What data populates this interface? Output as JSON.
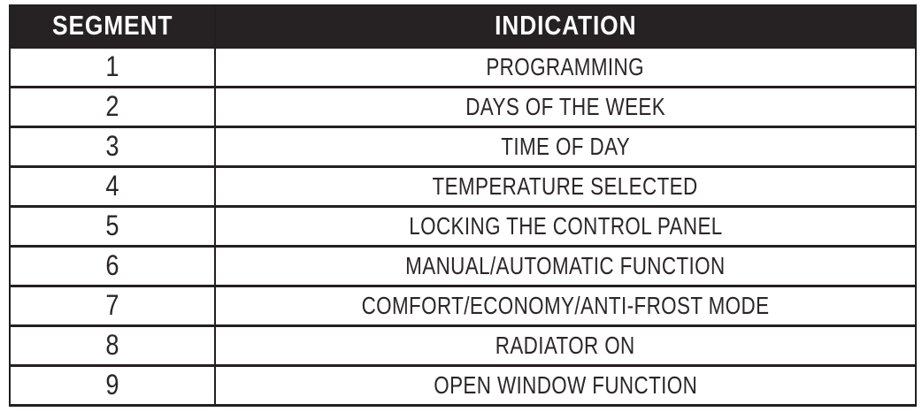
{
  "table": {
    "columns": [
      {
        "key": "segment",
        "label": "SEGMENT"
      },
      {
        "key": "indication",
        "label": "INDICATION"
      }
    ],
    "rows": [
      {
        "segment": "1",
        "indication": "PROGRAMMING"
      },
      {
        "segment": "2",
        "indication": "DAYS OF THE WEEK"
      },
      {
        "segment": "3",
        "indication": "TIME OF DAY"
      },
      {
        "segment": "4",
        "indication": "TEMPERATURE SELECTED"
      },
      {
        "segment": "5",
        "indication": "LOCKING THE CONTROL PANEL"
      },
      {
        "segment": "6",
        "indication": "MANUAL/AUTOMATIC FUNCTION"
      },
      {
        "segment": "7",
        "indication": "COMFORT/ECONOMY/ANTI-FROST MODE"
      },
      {
        "segment": "8",
        "indication": "RADIATOR ON"
      },
      {
        "segment": "9",
        "indication": "OPEN WINDOW FUNCTION"
      }
    ]
  },
  "colors": {
    "header_bg": "#262223",
    "header_text": "#ffffff",
    "body_text": "#2b2728",
    "border": "#231f20",
    "page_bg": "#ffffff"
  }
}
